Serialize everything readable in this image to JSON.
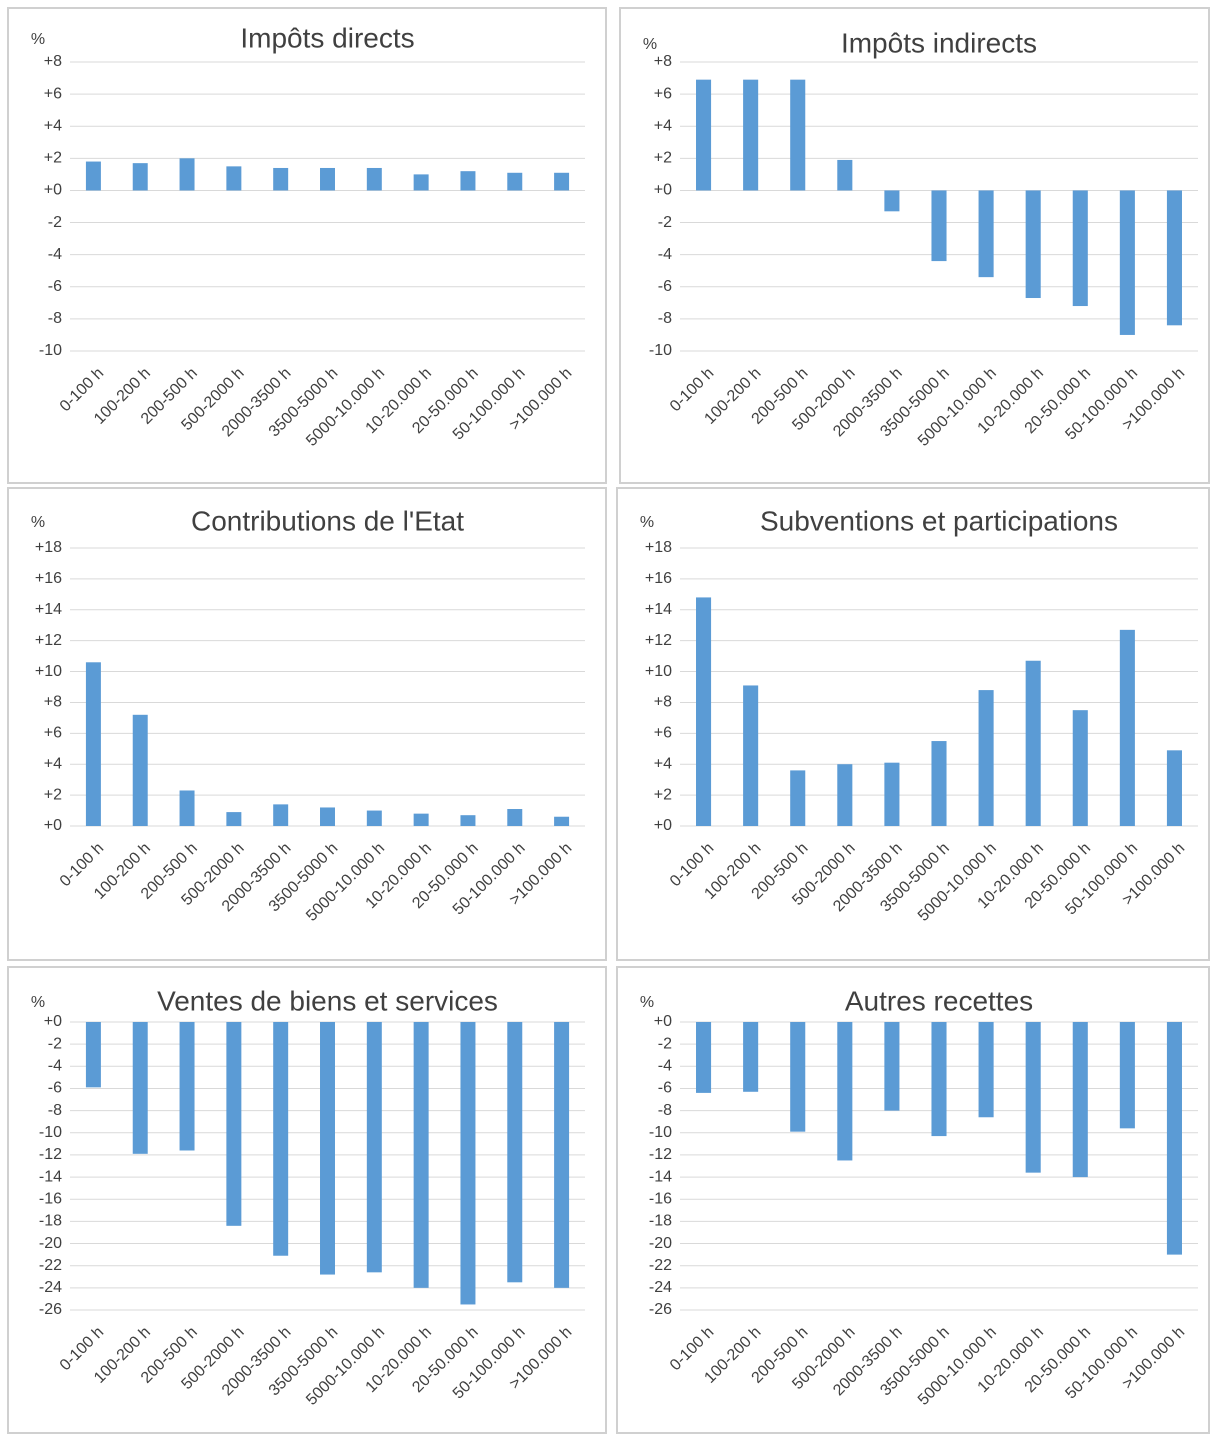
{
  "chart_data": [
    {
      "type": "bar",
      "title": "Impôts directs",
      "y_label": "%",
      "color": "#5b9bd5",
      "grid": true,
      "categories": [
        "0-100 h",
        "100-200 h",
        "200-500 h",
        "500-2000 h",
        "2000-3500 h",
        "3500-5000 h",
        "5000-10.000 h",
        "10-20.000 h",
        "20-50.000 h",
        "50-100.000 h",
        ">100.000 h"
      ],
      "values": [
        1.8,
        1.7,
        2.0,
        1.5,
        1.4,
        1.4,
        1.4,
        1.0,
        1.2,
        1.1,
        1.1
      ],
      "ylim": [
        -10,
        8
      ],
      "yticks": [
        {
          "value": 8,
          "label": "+8"
        },
        {
          "value": 6,
          "label": "+6"
        },
        {
          "value": 4,
          "label": "+4"
        },
        {
          "value": 2,
          "label": "+2"
        },
        {
          "value": 0,
          "label": "+0"
        },
        -2,
        -4,
        -6,
        -8,
        -10
      ]
    },
    {
      "type": "bar",
      "title": "Impôts indirects",
      "y_label": "%",
      "color": "#5b9bd5",
      "grid": true,
      "categories": [
        "0-100 h",
        "100-200 h",
        "200-500 h",
        "500-2000 h",
        "2000-3500 h",
        "3500-5000 h",
        "5000-10.000 h",
        "10-20.000 h",
        "20-50.000 h",
        "50-100.000 h",
        ">100.000 h"
      ],
      "values": [
        6.9,
        6.9,
        6.9,
        1.9,
        -1.3,
        -4.4,
        -5.4,
        -6.7,
        -7.2,
        -9.0,
        -8.4
      ],
      "ylim": [
        -10,
        8
      ],
      "yticks": [
        {
          "value": 8,
          "label": "+8"
        },
        {
          "value": 6,
          "label": "+6"
        },
        {
          "value": 4,
          "label": "+4"
        },
        {
          "value": 2,
          "label": "+2"
        },
        {
          "value": 0,
          "label": "+0"
        },
        -2,
        -4,
        -6,
        -8,
        -10
      ]
    },
    {
      "type": "bar",
      "title": "Contributions de l'Etat",
      "y_label": "%",
      "color": "#5b9bd5",
      "grid": true,
      "categories": [
        "0-100 h",
        "100-200 h",
        "200-500 h",
        "500-2000 h",
        "2000-3500 h",
        "3500-5000 h",
        "5000-10.000 h",
        "10-20.000 h",
        "20-50.000 h",
        "50-100.000 h",
        ">100.000 h"
      ],
      "values": [
        10.6,
        7.2,
        2.3,
        0.9,
        1.4,
        1.2,
        1.0,
        0.8,
        0.7,
        1.1,
        0.6
      ],
      "ylim": [
        0,
        18
      ],
      "yticks": [
        {
          "value": 18,
          "label": "+18"
        },
        {
          "value": 16,
          "label": "+16"
        },
        {
          "value": 14,
          "label": "+14"
        },
        {
          "value": 12,
          "label": "+12"
        },
        {
          "value": 10,
          "label": "+10"
        },
        {
          "value": 8,
          "label": "+8"
        },
        {
          "value": 6,
          "label": "+6"
        },
        {
          "value": 4,
          "label": "+4"
        },
        {
          "value": 2,
          "label": "+2"
        },
        {
          "value": 0,
          "label": "+0"
        }
      ]
    },
    {
      "type": "bar",
      "title": "Subventions et participations",
      "y_label": "%",
      "color": "#5b9bd5",
      "grid": true,
      "categories": [
        "0-100 h",
        "100-200 h",
        "200-500 h",
        "500-2000 h",
        "2000-3500 h",
        "3500-5000 h",
        "5000-10.000 h",
        "10-20.000 h",
        "20-50.000 h",
        "50-100.000 h",
        ">100.000 h"
      ],
      "values": [
        14.8,
        9.1,
        3.6,
        4.0,
        4.1,
        5.5,
        8.8,
        10.7,
        7.5,
        12.7,
        4.9
      ],
      "ylim": [
        0,
        18
      ],
      "yticks": [
        {
          "value": 18,
          "label": "+18"
        },
        {
          "value": 16,
          "label": "+16"
        },
        {
          "value": 14,
          "label": "+14"
        },
        {
          "value": 12,
          "label": "+12"
        },
        {
          "value": 10,
          "label": "+10"
        },
        {
          "value": 8,
          "label": "+8"
        },
        {
          "value": 6,
          "label": "+6"
        },
        {
          "value": 4,
          "label": "+4"
        },
        {
          "value": 2,
          "label": "+2"
        },
        {
          "value": 0,
          "label": "+0"
        }
      ]
    },
    {
      "type": "bar",
      "title": "Ventes de biens et services",
      "y_label": "%",
      "color": "#5b9bd5",
      "grid": true,
      "categories": [
        "0-100 h",
        "100-200 h",
        "200-500 h",
        "500-2000 h",
        "2000-3500 h",
        "3500-5000 h",
        "5000-10.000 h",
        "10-20.000 h",
        "20-50.000 h",
        "50-100.000 h",
        ">100.000 h"
      ],
      "values": [
        -5.9,
        -11.9,
        -11.6,
        -18.4,
        -21.1,
        -22.8,
        -22.6,
        -24.0,
        -25.5,
        -23.5,
        -24.0
      ],
      "ylim": [
        -26,
        0
      ],
      "yticks": [
        {
          "value": 0,
          "label": "+0"
        },
        -2,
        -4,
        -6,
        -8,
        -10,
        -12,
        -14,
        -16,
        -18,
        -20,
        -22,
        -24,
        -26
      ]
    },
    {
      "type": "bar",
      "title": "Autres recettes",
      "y_label": "%",
      "color": "#5b9bd5",
      "grid": true,
      "categories": [
        "0-100 h",
        "100-200 h",
        "200-500 h",
        "500-2000 h",
        "2000-3500 h",
        "3500-5000 h",
        "5000-10.000 h",
        "10-20.000 h",
        "20-50.000 h",
        "50-100.000 h",
        ">100.000 h"
      ],
      "values": [
        -6.4,
        -6.3,
        -9.9,
        -12.5,
        -8.0,
        -10.3,
        -8.6,
        -13.6,
        -14.0,
        -9.6,
        -21.0
      ],
      "ylim": [
        -26,
        0
      ],
      "yticks": [
        {
          "value": 0,
          "label": "+0"
        },
        -2,
        -4,
        -6,
        -8,
        -10,
        -12,
        -14,
        -16,
        -18,
        -20,
        -22,
        -24,
        -26
      ]
    }
  ]
}
